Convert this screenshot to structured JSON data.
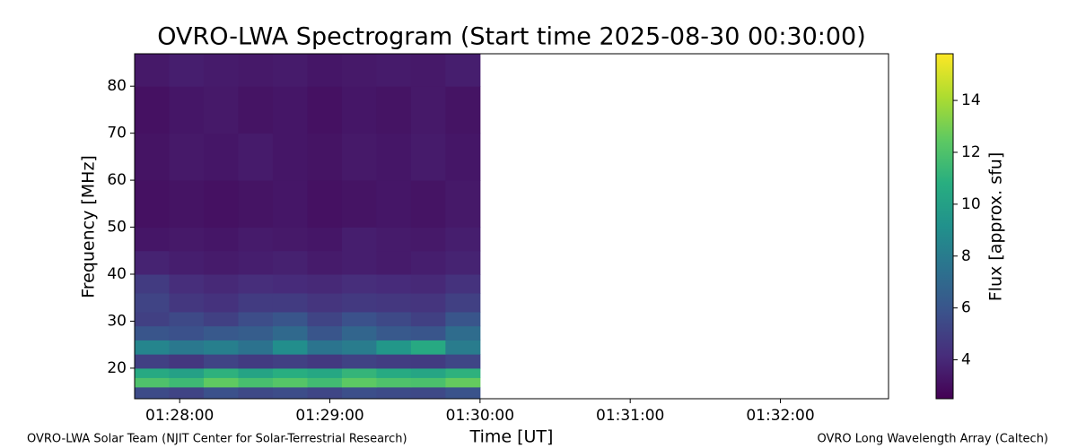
{
  "chart_data": {
    "type": "heatmap",
    "title": "OVRO-LWA Spectrogram (Start time 2025-08-30 00:30:00)",
    "x_label": "Time [UT]",
    "y_label": "Frequency [MHz]",
    "colorbar_label": "Flux [approx. sfu]",
    "colormap": "viridis",
    "footer_left": "OVRO-LWA Solar Team (NJIT Center for Solar-Terrestrial Research)",
    "footer_right": "OVRO Long Wavelength Array (Caltech)",
    "xlim": [
      87.7,
      92.72
    ],
    "xticks": [
      {
        "value": 88,
        "label": "01:28:00"
      },
      {
        "value": 89,
        "label": "01:29:00"
      },
      {
        "value": 90,
        "label": "01:30:00"
      },
      {
        "value": 91,
        "label": "01:31:00"
      },
      {
        "value": 92,
        "label": "01:32:00"
      }
    ],
    "ylim": [
      13.5,
      86.9
    ],
    "yticks": [
      20,
      30,
      40,
      50,
      60,
      70,
      80
    ],
    "clim": [
      2.5,
      15.8
    ],
    "cticks": [
      4,
      6,
      8,
      10,
      12,
      14
    ],
    "x_bins": [
      87.7,
      87.93,
      88.16,
      88.39,
      88.62,
      88.85,
      89.08,
      89.31,
      89.54,
      89.77,
      90
    ],
    "y_bins": [
      13.5,
      16,
      18,
      20,
      23,
      26,
      29,
      32,
      36,
      40,
      45,
      50,
      60,
      70,
      80,
      86.9
    ],
    "values": [
      [
        5.5,
        5.2,
        5.8,
        5.4,
        5.6,
        5.3,
        5.7,
        5.5,
        5.4,
        5.9
      ],
      [
        12,
        11.5,
        12.5,
        11.8,
        12.2,
        11.6,
        12.4,
        12,
        11.9,
        12.6
      ],
      [
        10.5,
        10,
        11,
        10.2,
        10.8,
        10.4,
        11.2,
        10.6,
        10.3,
        11
      ],
      [
        5,
        4.6,
        5.2,
        4.8,
        5,
        4.7,
        5.1,
        4.9,
        4.8,
        5.3
      ],
      [
        8.5,
        7.8,
        8.2,
        7.5,
        9,
        7.6,
        8,
        9.5,
        10.5,
        8
      ],
      [
        6,
        5.8,
        6.2,
        6.4,
        7,
        6,
        6.8,
        6.2,
        6,
        7.2
      ],
      [
        5,
        5.4,
        5,
        5.6,
        6,
        5.2,
        5.8,
        5.4,
        5,
        6
      ],
      [
        5.2,
        4.6,
        4.4,
        4.8,
        4.8,
        4.5,
        4.7,
        4.6,
        4.5,
        5
      ],
      [
        4.8,
        4.2,
        4,
        4.2,
        4.1,
        4,
        4.2,
        4.1,
        4,
        4.4
      ],
      [
        3.8,
        3.6,
        3.5,
        3.6,
        3.7,
        3.5,
        3.6,
        3.5,
        3.6,
        3.8
      ],
      [
        3.3,
        3.4,
        3.3,
        3.5,
        3.4,
        3.3,
        3.6,
        3.5,
        3.4,
        3.6
      ],
      [
        3.1,
        3.2,
        3.1,
        3.2,
        3.3,
        3.1,
        3.2,
        3.3,
        3.2,
        3.4
      ],
      [
        3.2,
        3.4,
        3.3,
        3.5,
        3.3,
        3.2,
        3.4,
        3.3,
        3.5,
        3.3
      ],
      [
        3.1,
        3.3,
        3.4,
        3.2,
        3.3,
        3.1,
        3.3,
        3.2,
        3.4,
        3.2
      ],
      [
        3.4,
        3.6,
        3.5,
        3.4,
        3.5,
        3.3,
        3.4,
        3.5,
        3.4,
        3.6
      ]
    ]
  }
}
